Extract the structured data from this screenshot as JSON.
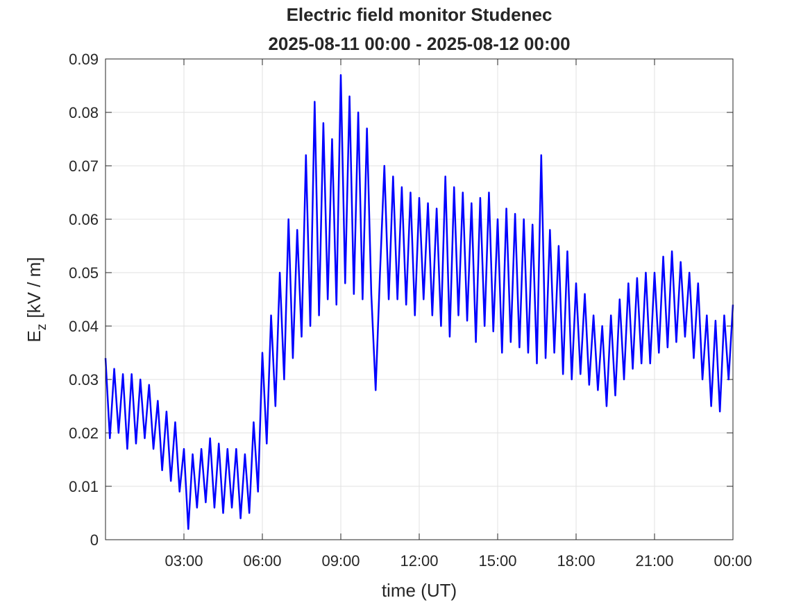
{
  "chart_data": {
    "type": "line",
    "title": "Electric field monitor Studenec",
    "subtitle": "2025-08-11 00:00 - 2025-08-12 00:00",
    "x_label": "time (UT)",
    "y_label": "E",
    "y_label_subscript": "z",
    "y_label_unit": "[kV / m]",
    "color": "#0000ff",
    "xlim": [
      0,
      1440
    ],
    "xticks": [
      {
        "value": 180,
        "label": "03:00"
      },
      {
        "value": 360,
        "label": "06:00"
      },
      {
        "value": 540,
        "label": "09:00"
      },
      {
        "value": 720,
        "label": "12:00"
      },
      {
        "value": 900,
        "label": "15:00"
      },
      {
        "value": 1080,
        "label": "18:00"
      },
      {
        "value": 1260,
        "label": "21:00"
      },
      {
        "value": 1440,
        "label": "00:00"
      }
    ],
    "ylim": [
      0,
      0.09
    ],
    "yticks": [
      0,
      0.01,
      0.02,
      0.03,
      0.04,
      0.05,
      0.06,
      0.07,
      0.08,
      0.09
    ],
    "grid": true,
    "x": [
      0,
      10,
      20,
      30,
      40,
      50,
      60,
      70,
      80,
      90,
      100,
      110,
      120,
      130,
      140,
      150,
      160,
      170,
      180,
      190,
      200,
      210,
      220,
      230,
      240,
      250,
      260,
      270,
      280,
      290,
      300,
      310,
      320,
      330,
      340,
      350,
      360,
      370,
      380,
      390,
      400,
      410,
      420,
      430,
      440,
      450,
      460,
      470,
      480,
      490,
      500,
      510,
      520,
      530,
      540,
      550,
      560,
      570,
      580,
      590,
      600,
      610,
      620,
      630,
      640,
      650,
      660,
      670,
      680,
      690,
      700,
      710,
      720,
      730,
      740,
      750,
      760,
      770,
      780,
      790,
      800,
      810,
      820,
      830,
      840,
      850,
      860,
      870,
      880,
      890,
      900,
      910,
      920,
      930,
      940,
      950,
      960,
      970,
      980,
      990,
      1000,
      1010,
      1020,
      1030,
      1040,
      1050,
      1060,
      1070,
      1080,
      1090,
      1100,
      1110,
      1120,
      1130,
      1140,
      1150,
      1160,
      1170,
      1180,
      1190,
      1200,
      1210,
      1220,
      1230,
      1240,
      1250,
      1260,
      1270,
      1280,
      1290,
      1300,
      1310,
      1320,
      1330,
      1340,
      1350,
      1360,
      1370,
      1380,
      1390,
      1400,
      1410,
      1420,
      1430,
      1440
    ],
    "values": [
      0.034,
      0.019,
      0.032,
      0.02,
      0.031,
      0.017,
      0.031,
      0.018,
      0.03,
      0.019,
      0.029,
      0.017,
      0.026,
      0.013,
      0.024,
      0.011,
      0.022,
      0.009,
      0.017,
      0.002,
      0.016,
      0.006,
      0.017,
      0.007,
      0.019,
      0.006,
      0.018,
      0.005,
      0.017,
      0.006,
      0.017,
      0.004,
      0.016,
      0.005,
      0.022,
      0.009,
      0.035,
      0.018,
      0.042,
      0.025,
      0.05,
      0.03,
      0.06,
      0.034,
      0.058,
      0.038,
      0.072,
      0.04,
      0.082,
      0.042,
      0.078,
      0.045,
      0.075,
      0.044,
      0.087,
      0.048,
      0.083,
      0.046,
      0.08,
      0.045,
      0.077,
      0.046,
      0.028,
      0.05,
      0.07,
      0.045,
      0.068,
      0.045,
      0.066,
      0.044,
      0.065,
      0.042,
      0.064,
      0.045,
      0.063,
      0.042,
      0.062,
      0.04,
      0.068,
      0.038,
      0.066,
      0.042,
      0.065,
      0.041,
      0.063,
      0.037,
      0.064,
      0.04,
      0.065,
      0.039,
      0.06,
      0.035,
      0.062,
      0.037,
      0.061,
      0.036,
      0.06,
      0.035,
      0.059,
      0.033,
      0.072,
      0.034,
      0.058,
      0.035,
      0.055,
      0.031,
      0.054,
      0.03,
      0.048,
      0.031,
      0.046,
      0.029,
      0.042,
      0.028,
      0.04,
      0.025,
      0.042,
      0.027,
      0.045,
      0.03,
      0.048,
      0.032,
      0.049,
      0.033,
      0.05,
      0.033,
      0.05,
      0.035,
      0.053,
      0.036,
      0.054,
      0.037,
      0.052,
      0.038,
      0.05,
      0.034,
      0.048,
      0.03,
      0.042,
      0.025,
      0.041,
      0.024,
      0.042,
      0.03,
      0.044
    ]
  }
}
